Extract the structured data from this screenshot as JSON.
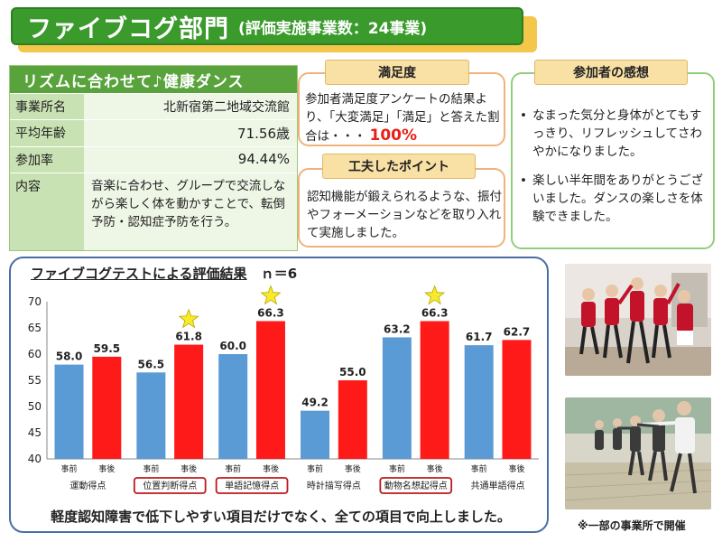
{
  "header": {
    "title": "ファイブコグ部門",
    "subtitle": "(評価実施事業数：24事業)"
  },
  "info": {
    "title": "リズムに合わせて♪健康ダンス",
    "rows": [
      {
        "label": "事業所名",
        "value": "北新宿第二地域交流館"
      },
      {
        "label": "平均年齢",
        "value": "71.56歳"
      },
      {
        "label": "参加率",
        "value": "94.44%"
      },
      {
        "label": "内容",
        "value": "音楽に合わせ、グループで交流しながら楽しく体を動かすことで、転倒予防・認知症予防を行う。"
      }
    ]
  },
  "satisfaction": {
    "tab": "満足度",
    "text": "参加者満足度アンケートの結果より、「大変満足」「満足」と答えた割合は・・・",
    "value": "100%"
  },
  "ideas": {
    "tab": "工夫したポイント",
    "text": "認知機能が鍛えられるような、振付やフォーメーションなどを取り入れて実施しました。"
  },
  "impressions": {
    "tab": "参加者の感想",
    "items": [
      "なまった気分と身体がとてもすっきり、リフレッシュしてさわやかになりました。",
      "楽しい半年間をありがとうございました。ダンスの楽しさを体験できました。"
    ]
  },
  "chart_data": {
    "type": "bar",
    "title": "ファイブコグテストによる評価結果",
    "n_label": "ｎ＝6",
    "ylim": [
      40,
      70
    ],
    "yticks": [
      40,
      45,
      50,
      55,
      60,
      65,
      70
    ],
    "categories": [
      "運動得点",
      "位置判断得点",
      "単語記憶得点",
      "時計描写得点",
      "動物名想起得点",
      "共通単語得点"
    ],
    "highlighted": [
      "位置判断得点",
      "単語記憶得点",
      "動物名想起得点"
    ],
    "starred": [
      "位置判断得点",
      "単語記憶得点",
      "動物名想起得点"
    ],
    "sub_labels": [
      "事前",
      "事後"
    ],
    "series": [
      {
        "name": "事前",
        "values": [
          58.0,
          56.5,
          60.0,
          49.2,
          63.2,
          61.7
        ],
        "labels": [
          "58.0",
          "56.5",
          "60.0",
          "49.2",
          "63.2",
          "61.7"
        ],
        "color": "#5b9bd5"
      },
      {
        "name": "事後",
        "values": [
          59.5,
          61.8,
          66.3,
          55.0,
          66.3,
          62.7
        ],
        "labels": [
          "59.5",
          "61.8",
          "66.3",
          "55.0",
          "66.3",
          "62.7"
        ],
        "color": "#ff1a1a"
      }
    ],
    "conclusion": "軽度認知障害で低下しやすい項目だけでなく、全ての項目で向上しました。"
  },
  "photos": {
    "caption": "※一部の事業所で開催"
  },
  "colors": {
    "banner": "#3a9a2c",
    "banner_shadow": "#f4c64a",
    "info_header": "#59a33c",
    "accent_red": "#e8201a",
    "chart_border": "#4a6ea4"
  }
}
